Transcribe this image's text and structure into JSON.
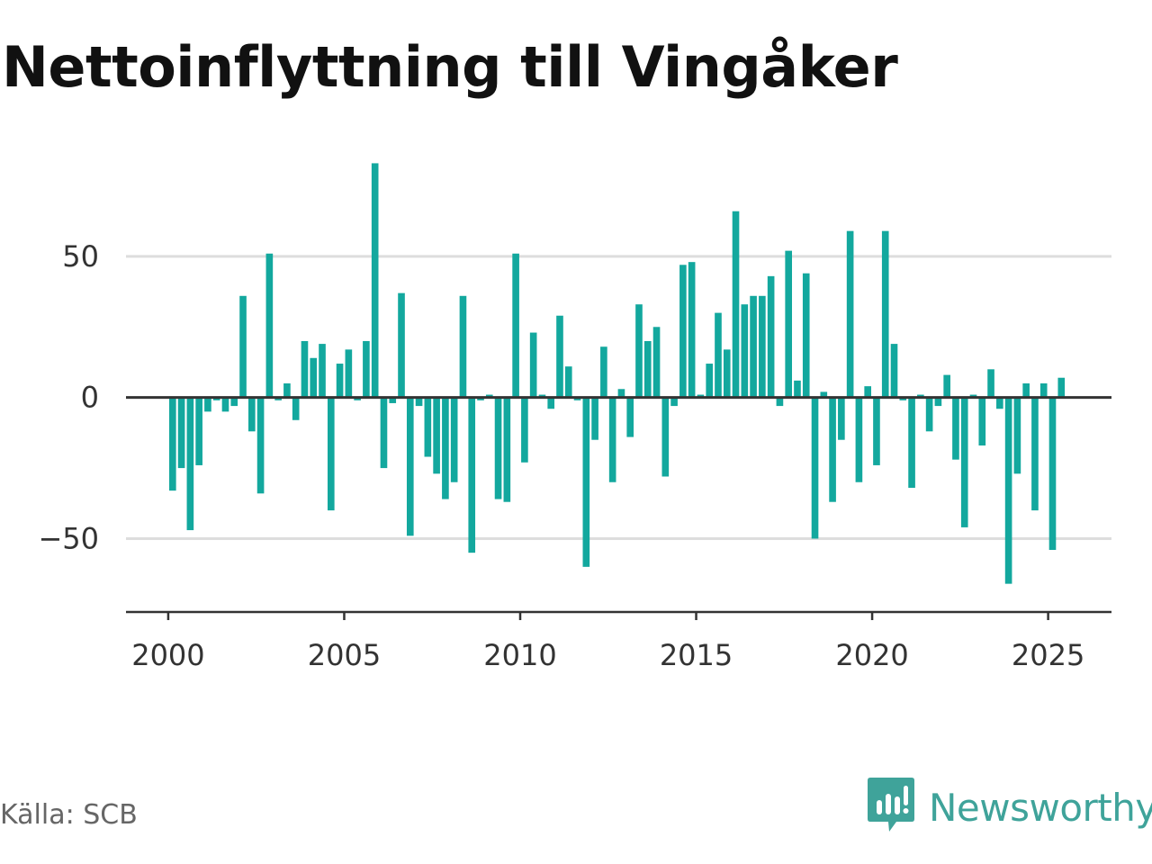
{
  "title": "Nettoinflyttning till Vingåker",
  "source": "Källa: SCB",
  "brand": {
    "name": "Newsworthy",
    "icon": "newsworthy-logo-icon"
  },
  "colors": {
    "bar": "#13a89e",
    "zero_line": "#333333",
    "grid": "#dddddd",
    "axis": "#333333",
    "brand": "#3fa39a"
  },
  "chart_data": {
    "type": "bar",
    "title": "Nettoinflyttning till Vingåker",
    "xlabel": "",
    "ylabel": "",
    "ylim": [
      -76,
      86
    ],
    "xlim": [
      1998.8,
      2026.8
    ],
    "grid": true,
    "legend": "none",
    "x_ticks": [
      2000,
      2005,
      2010,
      2015,
      2020,
      2025
    ],
    "x_tick_labels": [
      "2000",
      "2005",
      "2010",
      "2015",
      "2020",
      "2025"
    ],
    "y_ticks": [
      -50,
      0,
      50
    ],
    "y_tick_labels": [
      "−50",
      "0",
      "50"
    ],
    "period": "quarterly",
    "x": [
      2000.125,
      2000.375,
      2000.625,
      2000.875,
      2001.125,
      2001.375,
      2001.625,
      2001.875,
      2002.125,
      2002.375,
      2002.625,
      2002.875,
      2003.125,
      2003.375,
      2003.625,
      2003.875,
      2004.125,
      2004.375,
      2004.625,
      2004.875,
      2005.125,
      2005.375,
      2005.625,
      2005.875,
      2006.125,
      2006.375,
      2006.625,
      2006.875,
      2007.125,
      2007.375,
      2007.625,
      2007.875,
      2008.125,
      2008.375,
      2008.625,
      2008.875,
      2009.125,
      2009.375,
      2009.625,
      2009.875,
      2010.125,
      2010.375,
      2010.625,
      2010.875,
      2011.125,
      2011.375,
      2011.625,
      2011.875,
      2012.125,
      2012.375,
      2012.625,
      2012.875,
      2013.125,
      2013.375,
      2013.625,
      2013.875,
      2014.125,
      2014.375,
      2014.625,
      2014.875,
      2015.125,
      2015.375,
      2015.625,
      2015.875,
      2016.125,
      2016.375,
      2016.625,
      2016.875,
      2017.125,
      2017.375,
      2017.625,
      2017.875,
      2018.125,
      2018.375,
      2018.625,
      2018.875,
      2019.125,
      2019.375,
      2019.625,
      2019.875,
      2020.125,
      2020.375,
      2020.625,
      2020.875,
      2021.125,
      2021.375,
      2021.625,
      2021.875,
      2022.125,
      2022.375,
      2022.625,
      2022.875,
      2023.125,
      2023.375,
      2023.625,
      2023.875,
      2024.125,
      2024.375,
      2024.625,
      2024.875,
      2025.125,
      2025.375
    ],
    "values": [
      -33,
      -25,
      -47,
      -24,
      -5,
      -1,
      -5,
      -3,
      36,
      -12,
      -34,
      51,
      -1,
      5,
      -8,
      20,
      14,
      19,
      -40,
      12,
      17,
      -1,
      20,
      83,
      -25,
      -2,
      37,
      -49,
      -3,
      -21,
      -27,
      -36,
      -30,
      36,
      -55,
      -1,
      1,
      -36,
      -37,
      51,
      -23,
      23,
      1,
      -4,
      29,
      11,
      -1,
      -60,
      -15,
      18,
      -30,
      3,
      -14,
      33,
      20,
      25,
      -28,
      -3,
      47,
      48,
      1,
      12,
      30,
      17,
      66,
      33,
      36,
      36,
      43,
      -3,
      52,
      6,
      44,
      -50,
      2,
      -37,
      -15,
      59,
      -30,
      4,
      -24,
      59,
      19,
      -1,
      -32,
      1,
      -12,
      -3,
      8,
      -22,
      -46,
      1,
      -17,
      10,
      -4,
      -66,
      -27,
      5,
      -40,
      5,
      -54,
      7
    ]
  }
}
